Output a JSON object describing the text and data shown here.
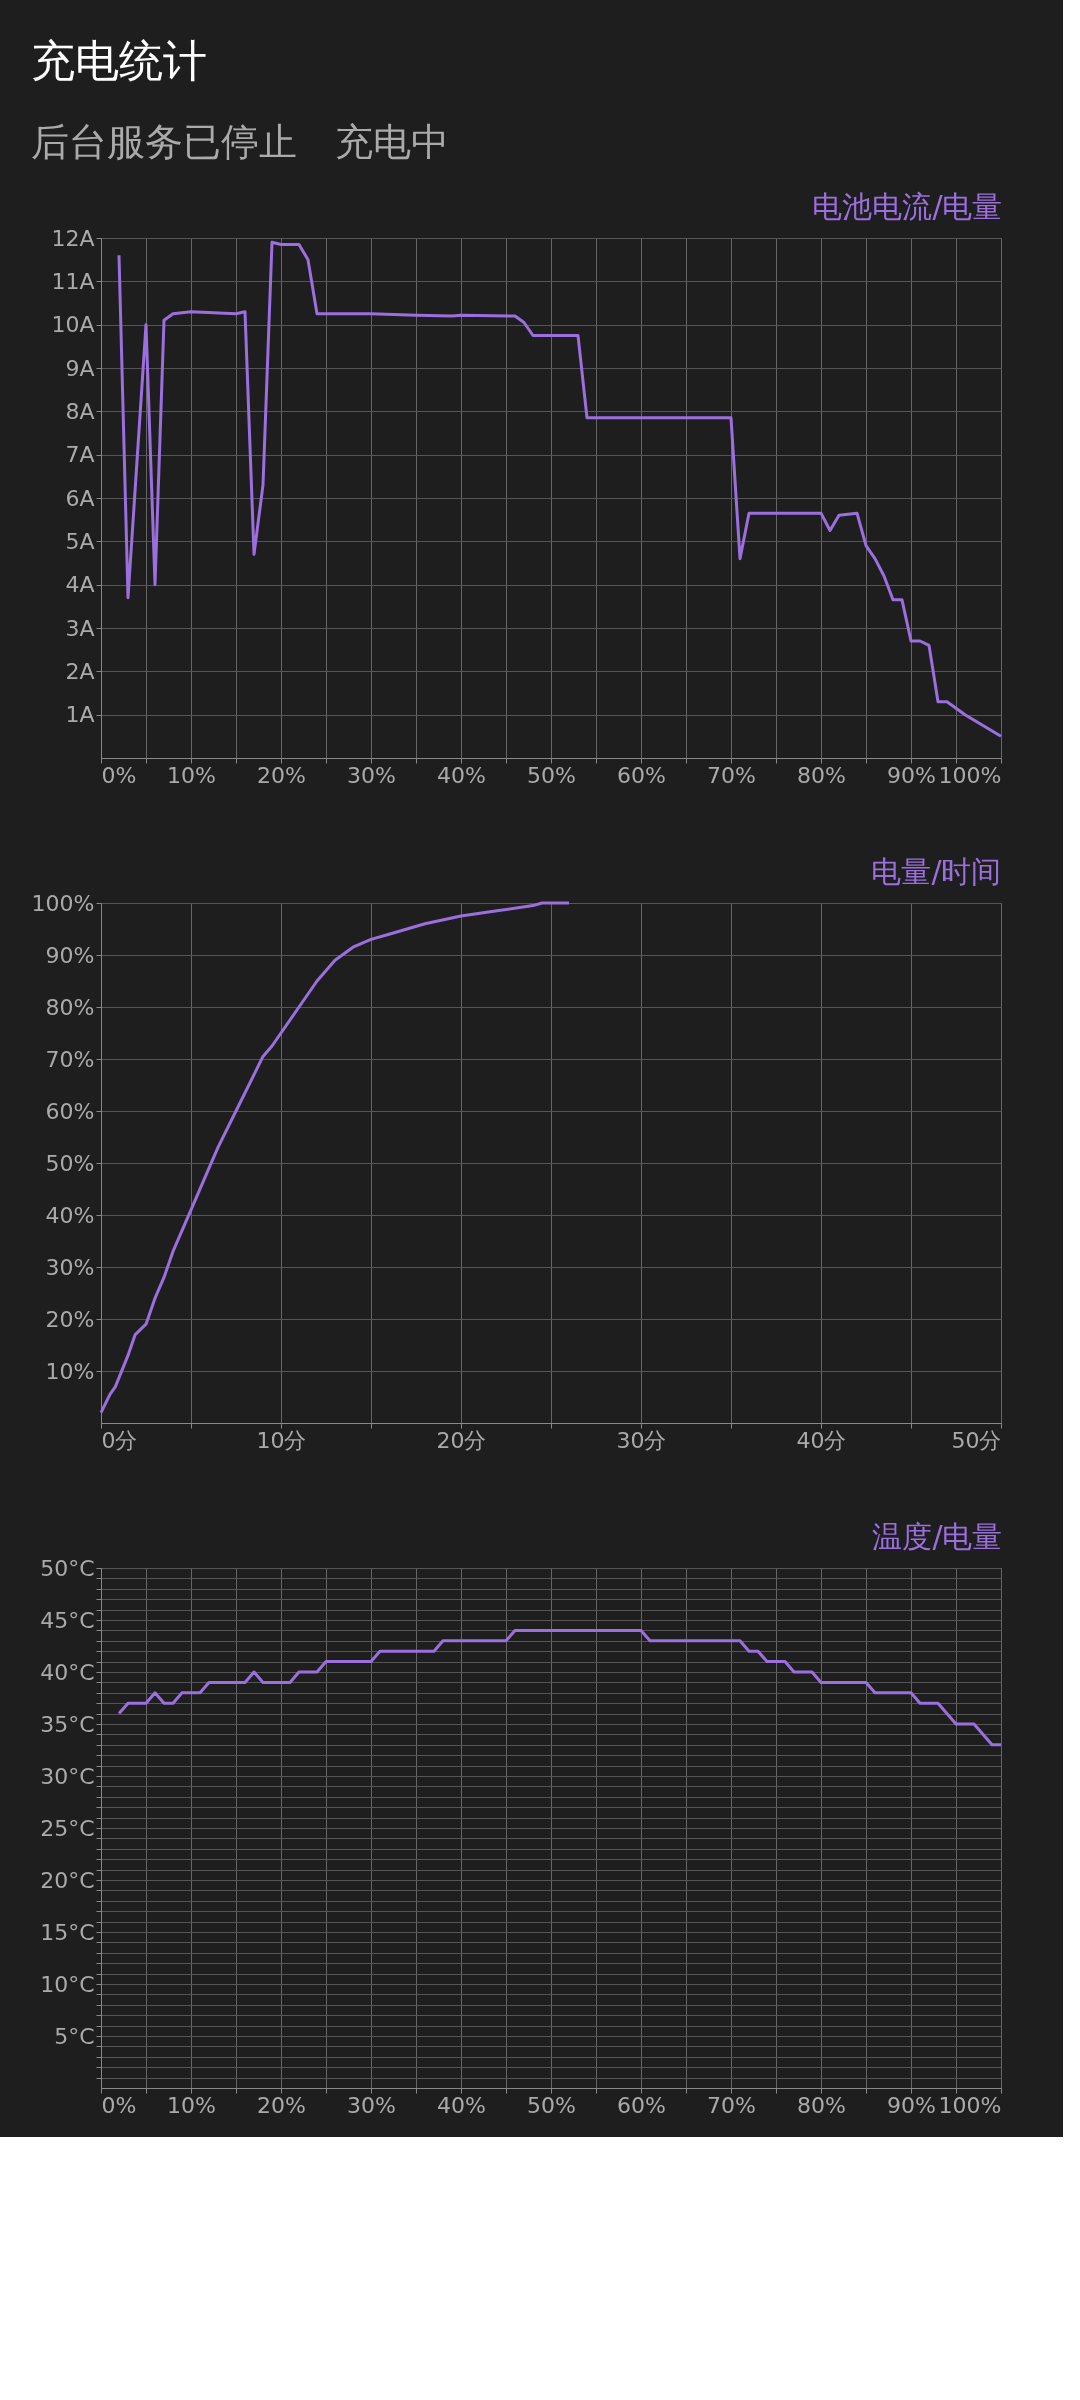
{
  "chart_data": [
    {
      "type": "line",
      "title": "电池电流/电量",
      "annotations": [
        "充电统计",
        "后台服务已停止　充电中"
      ],
      "x": [
        2,
        3,
        5,
        6,
        7,
        8,
        10,
        15,
        16,
        17,
        18,
        19,
        20,
        22,
        23,
        24,
        30,
        35,
        39,
        40,
        46,
        47,
        48,
        53,
        54,
        69,
        70,
        71,
        72,
        80,
        81,
        82,
        84,
        85,
        86,
        87,
        88,
        89,
        90,
        91,
        92,
        93,
        94,
        96,
        100
      ],
      "series": [
        {
          "color": "#9b6fde",
          "values": [
            11.6,
            3.7,
            10.0,
            4.0,
            10.1,
            10.25,
            10.3,
            10.25,
            10.3,
            4.7,
            6.3,
            11.9,
            11.85,
            11.85,
            11.5,
            10.25,
            10.25,
            10.22,
            10.2,
            10.22,
            10.2,
            10.05,
            9.75,
            9.75,
            7.85,
            7.85,
            7.85,
            4.6,
            5.65,
            5.65,
            5.25,
            5.6,
            5.65,
            4.9,
            4.6,
            4.2,
            3.65,
            3.65,
            2.7,
            2.7,
            2.6,
            1.3,
            1.3,
            1.0,
            0.5
          ]
        }
      ],
      "xlim": [
        0,
        100
      ],
      "ylim": [
        0,
        12
      ],
      "xticks": [
        {
          "value": 0,
          "label": "0%"
        },
        {
          "value": 5,
          "label": null
        },
        {
          "value": 10,
          "label": "10%"
        },
        {
          "value": 15,
          "label": null
        },
        {
          "value": 20,
          "label": "20%"
        },
        {
          "value": 25,
          "label": null
        },
        {
          "value": 30,
          "label": "30%"
        },
        {
          "value": 35,
          "label": null
        },
        {
          "value": 40,
          "label": "40%"
        },
        {
          "value": 45,
          "label": null
        },
        {
          "value": 50,
          "label": "50%"
        },
        {
          "value": 55,
          "label": null
        },
        {
          "value": 60,
          "label": "60%"
        },
        {
          "value": 65,
          "label": null
        },
        {
          "value": 70,
          "label": "70%"
        },
        {
          "value": 75,
          "label": null
        },
        {
          "value": 80,
          "label": "80%"
        },
        {
          "value": 85,
          "label": null
        },
        {
          "value": 90,
          "label": "90%"
        },
        {
          "value": 95,
          "label": null
        },
        {
          "value": 100,
          "label": "100%"
        }
      ],
      "yticks": [
        {
          "value": 1,
          "label": "1A"
        },
        {
          "value": 2,
          "label": "2A"
        },
        {
          "value": 3,
          "label": "3A"
        },
        {
          "value": 4,
          "label": "4A"
        },
        {
          "value": 5,
          "label": "5A"
        },
        {
          "value": 6,
          "label": "6A"
        },
        {
          "value": 7,
          "label": "7A"
        },
        {
          "value": 8,
          "label": "8A"
        },
        {
          "value": 9,
          "label": "9A"
        },
        {
          "value": 10,
          "label": "10A"
        },
        {
          "value": 11,
          "label": "11A"
        },
        {
          "value": 12,
          "label": "12A"
        }
      ],
      "grid": true,
      "marker": "none",
      "line_style": "solid"
    },
    {
      "type": "line",
      "title": "电量/时间",
      "x": [
        0,
        0.5,
        0.8,
        1.5,
        1.9,
        2.5,
        3,
        3.5,
        4,
        5,
        6,
        6.5,
        7.5,
        9,
        9.5,
        11,
        12,
        13,
        14,
        15,
        16,
        18,
        20,
        22,
        24,
        24.5,
        26
      ],
      "series": [
        {
          "color": "#9b6fde",
          "values": [
            2,
            5.5,
            7,
            13,
            17,
            19,
            24,
            28,
            33,
            41,
            49,
            53,
            60,
            70.5,
            72.5,
            80,
            85,
            89,
            91.5,
            93,
            94,
            96,
            97.5,
            98.5,
            99.5,
            100,
            100
          ]
        }
      ],
      "xlim": [
        0,
        50
      ],
      "ylim": [
        0,
        100
      ],
      "xticks": [
        {
          "value": 0,
          "label": "0分"
        },
        {
          "value": 5,
          "label": null
        },
        {
          "value": 10,
          "label": "10分"
        },
        {
          "value": 15,
          "label": null
        },
        {
          "value": 20,
          "label": "20分"
        },
        {
          "value": 25,
          "label": null
        },
        {
          "value": 30,
          "label": "30分"
        },
        {
          "value": 35,
          "label": null
        },
        {
          "value": 40,
          "label": "40分"
        },
        {
          "value": 45,
          "label": null
        },
        {
          "value": 50,
          "label": "50分"
        }
      ],
      "yticks": [
        {
          "value": 10,
          "label": "10%"
        },
        {
          "value": 20,
          "label": "20%"
        },
        {
          "value": 30,
          "label": "30%"
        },
        {
          "value": 40,
          "label": "40%"
        },
        {
          "value": 50,
          "label": "50%"
        },
        {
          "value": 60,
          "label": "60%"
        },
        {
          "value": 70,
          "label": "70%"
        },
        {
          "value": 80,
          "label": "80%"
        },
        {
          "value": 90,
          "label": "90%"
        },
        {
          "value": 100,
          "label": "100%"
        }
      ],
      "grid": true,
      "marker": "none",
      "line_style": "solid"
    },
    {
      "type": "line",
      "title": "温度/电量",
      "x": [
        2,
        3,
        5,
        6,
        7,
        8,
        9,
        11,
        12,
        16,
        17,
        18,
        21,
        22,
        24,
        25,
        30,
        31,
        37,
        38,
        45,
        46,
        60,
        61,
        71,
        72,
        73,
        74,
        76,
        77,
        79,
        80,
        85,
        86,
        90,
        91,
        93,
        95,
        97,
        99,
        100
      ],
      "series": [
        {
          "color": "#9b6fde",
          "values": [
            36,
            37,
            37,
            38,
            37,
            37,
            38,
            38,
            39,
            39,
            40,
            39,
            39,
            40,
            40,
            41,
            41,
            42,
            42,
            43,
            43,
            44,
            44,
            43,
            43,
            42,
            42,
            41,
            41,
            40,
            40,
            39,
            39,
            38,
            38,
            37,
            37,
            35,
            35,
            33,
            33
          ]
        }
      ],
      "xlim": [
        0,
        100
      ],
      "ylim": [
        0,
        50
      ],
      "xticks": [
        {
          "value": 0,
          "label": "0%"
        },
        {
          "value": 5,
          "label": null
        },
        {
          "value": 10,
          "label": "10%"
        },
        {
          "value": 15,
          "label": null
        },
        {
          "value": 20,
          "label": "20%"
        },
        {
          "value": 25,
          "label": null
        },
        {
          "value": 30,
          "label": "30%"
        },
        {
          "value": 35,
          "label": null
        },
        {
          "value": 40,
          "label": "40%"
        },
        {
          "value": 45,
          "label": null
        },
        {
          "value": 50,
          "label": "50%"
        },
        {
          "value": 55,
          "label": null
        },
        {
          "value": 60,
          "label": "60%"
        },
        {
          "value": 65,
          "label": null
        },
        {
          "value": 70,
          "label": "70%"
        },
        {
          "value": 75,
          "label": null
        },
        {
          "value": 80,
          "label": "80%"
        },
        {
          "value": 85,
          "label": null
        },
        {
          "value": 90,
          "label": "90%"
        },
        {
          "value": 95,
          "label": null
        },
        {
          "value": 100,
          "label": "100%"
        }
      ],
      "yticks": [
        {
          "value": 1,
          "label": null
        },
        {
          "value": 2,
          "label": null
        },
        {
          "value": 3,
          "label": null
        },
        {
          "value": 4,
          "label": null
        },
        {
          "value": 5,
          "label": "5°C"
        },
        {
          "value": 6,
          "label": null
        },
        {
          "value": 7,
          "label": null
        },
        {
          "value": 8,
          "label": null
        },
        {
          "value": 9,
          "label": null
        },
        {
          "value": 10,
          "label": "10°C"
        },
        {
          "value": 11,
          "label": null
        },
        {
          "value": 12,
          "label": null
        },
        {
          "value": 13,
          "label": null
        },
        {
          "value": 14,
          "label": null
        },
        {
          "value": 15,
          "label": "15°C"
        },
        {
          "value": 16,
          "label": null
        },
        {
          "value": 17,
          "label": null
        },
        {
          "value": 18,
          "label": null
        },
        {
          "value": 19,
          "label": null
        },
        {
          "value": 20,
          "label": "20°C"
        },
        {
          "value": 21,
          "label": null
        },
        {
          "value": 22,
          "label": null
        },
        {
          "value": 23,
          "label": null
        },
        {
          "value": 24,
          "label": null
        },
        {
          "value": 25,
          "label": "25°C"
        },
        {
          "value": 26,
          "label": null
        },
        {
          "value": 27,
          "label": null
        },
        {
          "value": 28,
          "label": null
        },
        {
          "value": 29,
          "label": null
        },
        {
          "value": 30,
          "label": "30°C"
        },
        {
          "value": 31,
          "label": null
        },
        {
          "value": 32,
          "label": null
        },
        {
          "value": 33,
          "label": null
        },
        {
          "value": 34,
          "label": null
        },
        {
          "value": 35,
          "label": "35°C"
        },
        {
          "value": 36,
          "label": null
        },
        {
          "value": 37,
          "label": null
        },
        {
          "value": 38,
          "label": null
        },
        {
          "value": 39,
          "label": null
        },
        {
          "value": 40,
          "label": "40°C"
        },
        {
          "value": 41,
          "label": null
        },
        {
          "value": 42,
          "label": null
        },
        {
          "value": 43,
          "label": null
        },
        {
          "value": 44,
          "label": null
        },
        {
          "value": 45,
          "label": "45°C"
        },
        {
          "value": 46,
          "label": null
        },
        {
          "value": 47,
          "label": null
        },
        {
          "value": 48,
          "label": null
        },
        {
          "value": 49,
          "label": null
        },
        {
          "value": 50,
          "label": "50°C"
        }
      ],
      "grid": true,
      "marker": "none",
      "line_style": "solid"
    }
  ]
}
